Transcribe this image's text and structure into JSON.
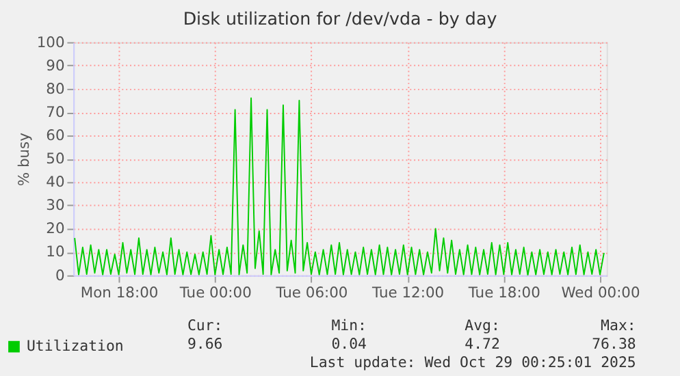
{
  "chart_data": {
    "type": "line",
    "title": "Disk utilization for /dev/vda - by day",
    "ylabel": "% busy",
    "x": [
      "2025-10-27T15:15",
      "2025-10-27T15:30",
      "2025-10-27T15:45",
      "2025-10-27T16:00",
      "2025-10-27T16:15",
      "2025-10-27T16:30",
      "2025-10-27T16:45",
      "2025-10-27T17:00",
      "2025-10-27T17:15",
      "2025-10-27T17:30",
      "2025-10-27T17:45",
      "2025-10-27T18:00",
      "2025-10-27T18:15",
      "2025-10-27T18:30",
      "2025-10-27T18:45",
      "2025-10-27T19:00",
      "2025-10-27T19:15",
      "2025-10-27T19:30",
      "2025-10-27T19:45",
      "2025-10-27T20:00",
      "2025-10-27T20:15",
      "2025-10-27T20:30",
      "2025-10-27T20:45",
      "2025-10-27T21:00",
      "2025-10-27T21:15",
      "2025-10-27T21:30",
      "2025-10-27T21:45",
      "2025-10-27T22:00",
      "2025-10-27T22:15",
      "2025-10-27T22:30",
      "2025-10-27T22:45",
      "2025-10-27T23:00",
      "2025-10-27T23:15",
      "2025-10-27T23:30",
      "2025-10-27T23:45",
      "2025-10-28T00:00",
      "2025-10-28T00:15",
      "2025-10-28T00:30",
      "2025-10-28T00:45",
      "2025-10-28T01:00",
      "2025-10-28T01:15",
      "2025-10-28T01:30",
      "2025-10-28T01:45",
      "2025-10-28T02:00",
      "2025-10-28T02:15",
      "2025-10-28T02:30",
      "2025-10-28T02:45",
      "2025-10-28T03:00",
      "2025-10-28T03:15",
      "2025-10-28T03:30",
      "2025-10-28T03:45",
      "2025-10-28T04:00",
      "2025-10-28T04:15",
      "2025-10-28T04:30",
      "2025-10-28T04:45",
      "2025-10-28T05:00",
      "2025-10-28T05:15",
      "2025-10-28T05:30",
      "2025-10-28T05:45",
      "2025-10-28T06:00",
      "2025-10-28T06:15",
      "2025-10-28T06:30",
      "2025-10-28T06:45",
      "2025-10-28T07:00",
      "2025-10-28T07:15",
      "2025-10-28T07:30",
      "2025-10-28T07:45",
      "2025-10-28T08:00",
      "2025-10-28T08:15",
      "2025-10-28T08:30",
      "2025-10-28T08:45",
      "2025-10-28T09:00",
      "2025-10-28T09:15",
      "2025-10-28T09:30",
      "2025-10-28T09:45",
      "2025-10-28T10:00",
      "2025-10-28T10:15",
      "2025-10-28T10:30",
      "2025-10-28T10:45",
      "2025-10-28T11:00",
      "2025-10-28T11:15",
      "2025-10-28T11:30",
      "2025-10-28T11:45",
      "2025-10-28T12:00",
      "2025-10-28T12:15",
      "2025-10-28T12:30",
      "2025-10-28T12:45",
      "2025-10-28T13:00",
      "2025-10-28T13:15",
      "2025-10-28T13:30",
      "2025-10-28T13:45",
      "2025-10-28T14:00",
      "2025-10-28T14:15",
      "2025-10-28T14:30",
      "2025-10-28T14:45",
      "2025-10-28T15:00",
      "2025-10-28T15:15",
      "2025-10-28T15:30",
      "2025-10-28T15:45",
      "2025-10-28T16:00",
      "2025-10-28T16:15",
      "2025-10-28T16:30",
      "2025-10-28T16:45",
      "2025-10-28T17:00",
      "2025-10-28T17:15",
      "2025-10-28T17:30",
      "2025-10-28T17:45",
      "2025-10-28T18:00",
      "2025-10-28T18:15",
      "2025-10-28T18:30",
      "2025-10-28T18:45",
      "2025-10-28T19:00",
      "2025-10-28T19:15",
      "2025-10-28T19:30",
      "2025-10-28T19:45",
      "2025-10-28T20:00",
      "2025-10-28T20:15",
      "2025-10-28T20:30",
      "2025-10-28T20:45",
      "2025-10-28T21:00",
      "2025-10-28T21:15",
      "2025-10-28T21:30",
      "2025-10-28T21:45",
      "2025-10-28T22:00",
      "2025-10-28T22:15",
      "2025-10-28T22:30",
      "2025-10-28T22:45",
      "2025-10-28T23:00",
      "2025-10-28T23:15",
      "2025-10-28T23:30",
      "2025-10-28T23:45",
      "2025-10-29T00:00",
      "2025-10-29T00:15"
    ],
    "series": [
      {
        "name": "Utilization",
        "color": "#00cc00",
        "values": [
          16,
          0.3,
          12,
          0.5,
          13,
          1,
          11,
          0.3,
          11,
          0.5,
          9,
          0.3,
          14,
          1,
          11,
          0.4,
          16,
          0.5,
          11,
          0.3,
          12,
          1,
          10,
          0.3,
          16,
          0.5,
          11,
          0.3,
          10,
          0.4,
          9,
          0.3,
          10,
          0.5,
          17,
          0.3,
          11,
          0.4,
          12,
          0.5,
          71,
          0.3,
          13,
          1,
          76,
          3,
          19,
          0.5,
          71,
          0.3,
          11,
          1,
          73,
          2,
          15,
          1,
          75,
          2,
          14,
          0.5,
          10,
          0.3,
          11,
          0.4,
          13,
          0.5,
          14,
          0.3,
          11,
          0.4,
          10,
          0.3,
          12,
          0.5,
          11,
          0.3,
          13,
          0.4,
          12,
          0.3,
          11,
          0.5,
          13,
          0.3,
          12,
          0.4,
          11,
          0.3,
          10,
          1,
          20,
          2,
          16,
          1,
          15,
          0.5,
          11,
          0.3,
          13,
          0.4,
          12,
          0.3,
          11,
          0.5,
          14,
          0.3,
          13,
          0.4,
          14,
          0.3,
          11,
          0.5,
          12,
          0.04,
          10,
          0.3,
          11,
          0.4,
          10,
          0.3,
          11,
          0.5,
          10,
          0.3,
          12,
          0.4,
          13,
          0.3,
          10,
          0.5,
          11,
          0.3,
          9.66
        ]
      }
    ],
    "xlim": [
      "2025-10-27T15:10",
      "2025-10-29T00:25"
    ],
    "xticks": [
      {
        "value": "2025-10-27T18:00",
        "label": "Mon 18:00"
      },
      {
        "value": "2025-10-28T00:00",
        "label": "Tue 00:00"
      },
      {
        "value": "2025-10-28T06:00",
        "label": "Tue 06:00"
      },
      {
        "value": "2025-10-28T12:00",
        "label": "Tue 12:00"
      },
      {
        "value": "2025-10-28T18:00",
        "label": "Tue 18:00"
      },
      {
        "value": "2025-10-29T00:00",
        "label": "Wed 00:00"
      }
    ],
    "ylim": [
      0,
      100
    ],
    "yticks": [
      0,
      10,
      20,
      30,
      40,
      50,
      60,
      70,
      80,
      90,
      100
    ],
    "grid": true,
    "legend": "bottom left",
    "marker": "none",
    "line_style": "solid",
    "annotations": [
      "Cur:",
      "Min:",
      "Avg:",
      "Max:",
      "9.66",
      "0.04",
      "4.72",
      "76.38",
      "Last update: Wed Oct 29 00:25:01 2025"
    ]
  }
}
